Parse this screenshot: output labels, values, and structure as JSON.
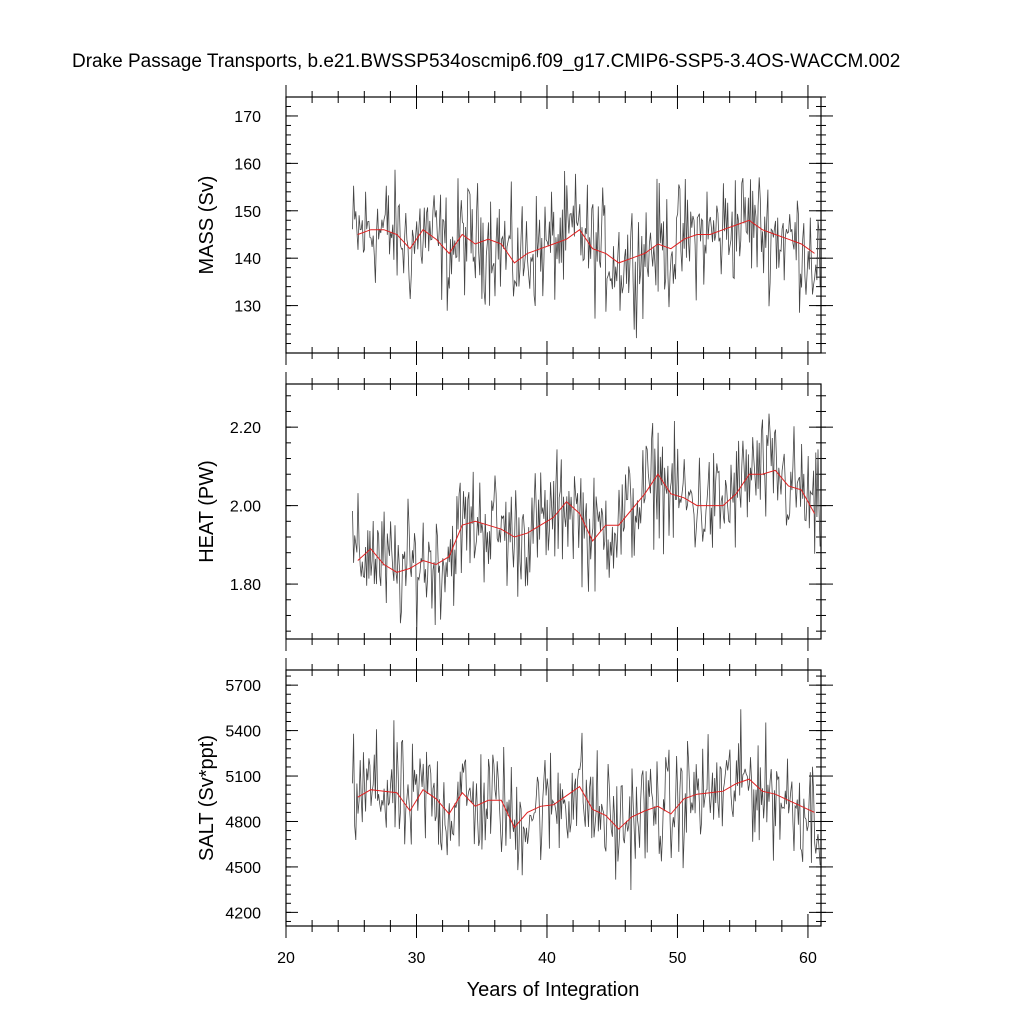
{
  "title": "Drake Passage Transports, b.e21.BWSSP534oscmip6.f09_g17.CMIP6-SSP5-3.4OS-WACCM.002",
  "xlabel": "Years of Integration",
  "xlim": [
    20,
    61
  ],
  "xticks": [
    20,
    30,
    40,
    50,
    60
  ],
  "colors": {
    "raw": "#444444",
    "smooth": "#e02020"
  },
  "chart_data": [
    {
      "type": "line",
      "name": "mass",
      "ylabel": "MASS (Sv)",
      "ylim": [
        120,
        174
      ],
      "yticks": [
        130,
        140,
        150,
        160,
        170
      ],
      "x": [
        25.5,
        26.5,
        27.5,
        28.5,
        29.5,
        30.5,
        31.5,
        32.5,
        33.5,
        34.5,
        35.5,
        36.5,
        37.5,
        38.5,
        39.5,
        40.5,
        41.5,
        42.5,
        43.5,
        44.5,
        45.5,
        46.5,
        47.5,
        48.5,
        49.5,
        50.5,
        51.5,
        52.5,
        53.5,
        54.5,
        55.5,
        56.5,
        57.5,
        58.5,
        59.5,
        60.5
      ],
      "series": [
        {
          "name": "",
          "values": [
            145,
            146,
            146,
            145,
            142,
            146,
            144,
            141,
            145,
            143,
            144,
            143,
            139,
            141,
            142,
            143,
            144,
            146,
            142,
            141,
            139,
            140,
            141,
            143,
            142,
            144,
            145,
            145,
            146,
            147,
            148,
            146,
            145,
            144,
            143,
            141
          ]
        }
      ]
    },
    {
      "type": "line",
      "name": "heat",
      "ylabel": "HEAT (PW)",
      "ylim": [
        1.66,
        2.31
      ],
      "yticks": [
        1.8,
        2.0,
        2.2
      ],
      "ytick_labels": [
        "1.80",
        "2.00",
        "2.20"
      ],
      "x": [
        25.5,
        26.5,
        27.5,
        28.5,
        29.5,
        30.5,
        31.5,
        32.5,
        33.5,
        34.5,
        35.5,
        36.5,
        37.5,
        38.5,
        39.5,
        40.5,
        41.5,
        42.5,
        43.5,
        44.5,
        45.5,
        46.5,
        47.5,
        48.5,
        49.5,
        50.5,
        51.5,
        52.5,
        53.5,
        54.5,
        55.5,
        56.5,
        57.5,
        58.5,
        59.5,
        60.5
      ],
      "series": [
        {
          "name": "",
          "values": [
            1.86,
            1.89,
            1.85,
            1.83,
            1.84,
            1.86,
            1.85,
            1.87,
            1.95,
            1.96,
            1.95,
            1.94,
            1.92,
            1.93,
            1.95,
            1.97,
            2.01,
            1.98,
            1.91,
            1.95,
            1.95,
            1.99,
            2.03,
            2.08,
            2.03,
            2.02,
            2.0,
            2.0,
            2.0,
            2.03,
            2.08,
            2.08,
            2.09,
            2.05,
            2.04,
            1.98
          ]
        }
      ]
    },
    {
      "type": "line",
      "name": "salt",
      "ylabel": "SALT (Sv*ppt)",
      "ylim": [
        4110,
        5800
      ],
      "yticks": [
        4200,
        4500,
        4800,
        5100,
        5400,
        5700
      ],
      "x": [
        25.5,
        26.5,
        27.5,
        28.5,
        29.5,
        30.5,
        31.5,
        32.5,
        33.5,
        34.5,
        35.5,
        36.5,
        37.5,
        38.5,
        39.5,
        40.5,
        41.5,
        42.5,
        43.5,
        44.5,
        45.5,
        46.5,
        47.5,
        48.5,
        49.5,
        50.5,
        51.5,
        52.5,
        53.5,
        54.5,
        55.5,
        56.5,
        57.5,
        58.5,
        59.5,
        60.5
      ],
      "series": [
        {
          "name": "",
          "values": [
            4960,
            5010,
            5000,
            4990,
            4870,
            5010,
            4950,
            4850,
            4990,
            4900,
            4940,
            4940,
            4760,
            4860,
            4900,
            4910,
            4970,
            5030,
            4880,
            4840,
            4750,
            4830,
            4870,
            4900,
            4850,
            4950,
            4980,
            4990,
            5000,
            5050,
            5080,
            5000,
            4980,
            4940,
            4900,
            4860
          ]
        }
      ]
    }
  ]
}
